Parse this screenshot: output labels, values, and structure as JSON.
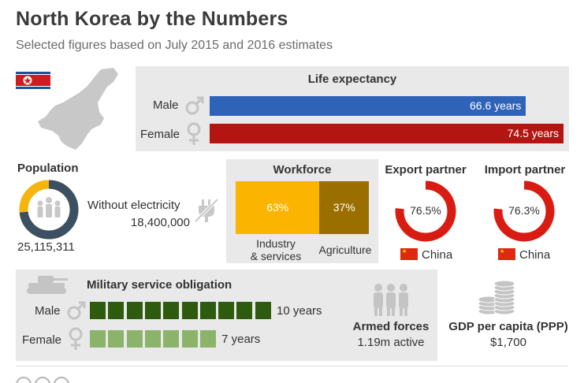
{
  "header": {
    "title": "North Korea by the Numbers",
    "subtitle": "Selected figures based on July 2015 and 2016 estimates"
  },
  "colors": {
    "male_bar": "#2f63b7",
    "female_bar": "#b31512",
    "donut_dark": "#3c5063",
    "donut_yellow": "#f5b40e",
    "industry": "#fbb400",
    "agriculture": "#9a6f00",
    "partner_red": "#d81c12",
    "military_dark": "#2f5b0e",
    "military_light": "#8cb36a",
    "panel": "#e9e9e9"
  },
  "life_expectancy": {
    "heading": "Life expectancy",
    "male_label": "Male",
    "female_label": "Female",
    "male_value": "66.6 years",
    "female_value": "74.5 years"
  },
  "population": {
    "heading": "Population",
    "value": "25,115,311",
    "without_electricity_label": "Without electricity",
    "without_electricity_value": "18,400,000"
  },
  "workforce": {
    "heading": "Workforce",
    "industry_pct": "63%",
    "agriculture_pct": "37%",
    "industry_label_1": "Industry",
    "industry_label_2": "& services",
    "agriculture_label": "Agriculture"
  },
  "export_partner": {
    "heading": "Export partner",
    "share": "76.5%",
    "country": "China"
  },
  "import_partner": {
    "heading": "Import partner",
    "share": "76.3%",
    "country": "China"
  },
  "military": {
    "heading": "Military service obligation",
    "male_label": "Male",
    "female_label": "Female",
    "male_value": "10 years",
    "female_value": "7 years"
  },
  "armed_forces": {
    "heading": "Armed forces",
    "value": "1.19m active"
  },
  "gdp": {
    "heading": "GDP per capita (PPP)",
    "value": "$1,700"
  },
  "chart_data": [
    {
      "type": "bar",
      "title": "Life expectancy",
      "categories": [
        "Male",
        "Female"
      ],
      "values": [
        66.6,
        74.5
      ]
    },
    {
      "type": "pie",
      "title": "Population",
      "categories": [
        "Without electricity",
        "With electricity"
      ],
      "values": [
        18400000,
        6715311
      ]
    },
    {
      "type": "bar",
      "title": "Workforce",
      "categories": [
        "Industry & services",
        "Agriculture"
      ],
      "values": [
        63,
        37
      ]
    },
    {
      "type": "pie",
      "title": "Export partner",
      "categories": [
        "China",
        "Other"
      ],
      "values": [
        76.5,
        23.5
      ]
    },
    {
      "type": "pie",
      "title": "Import partner",
      "categories": [
        "China",
        "Other"
      ],
      "values": [
        76.3,
        23.7
      ]
    },
    {
      "type": "bar",
      "title": "Military service obligation",
      "categories": [
        "Male",
        "Female"
      ],
      "values": [
        10,
        7
      ]
    }
  ]
}
